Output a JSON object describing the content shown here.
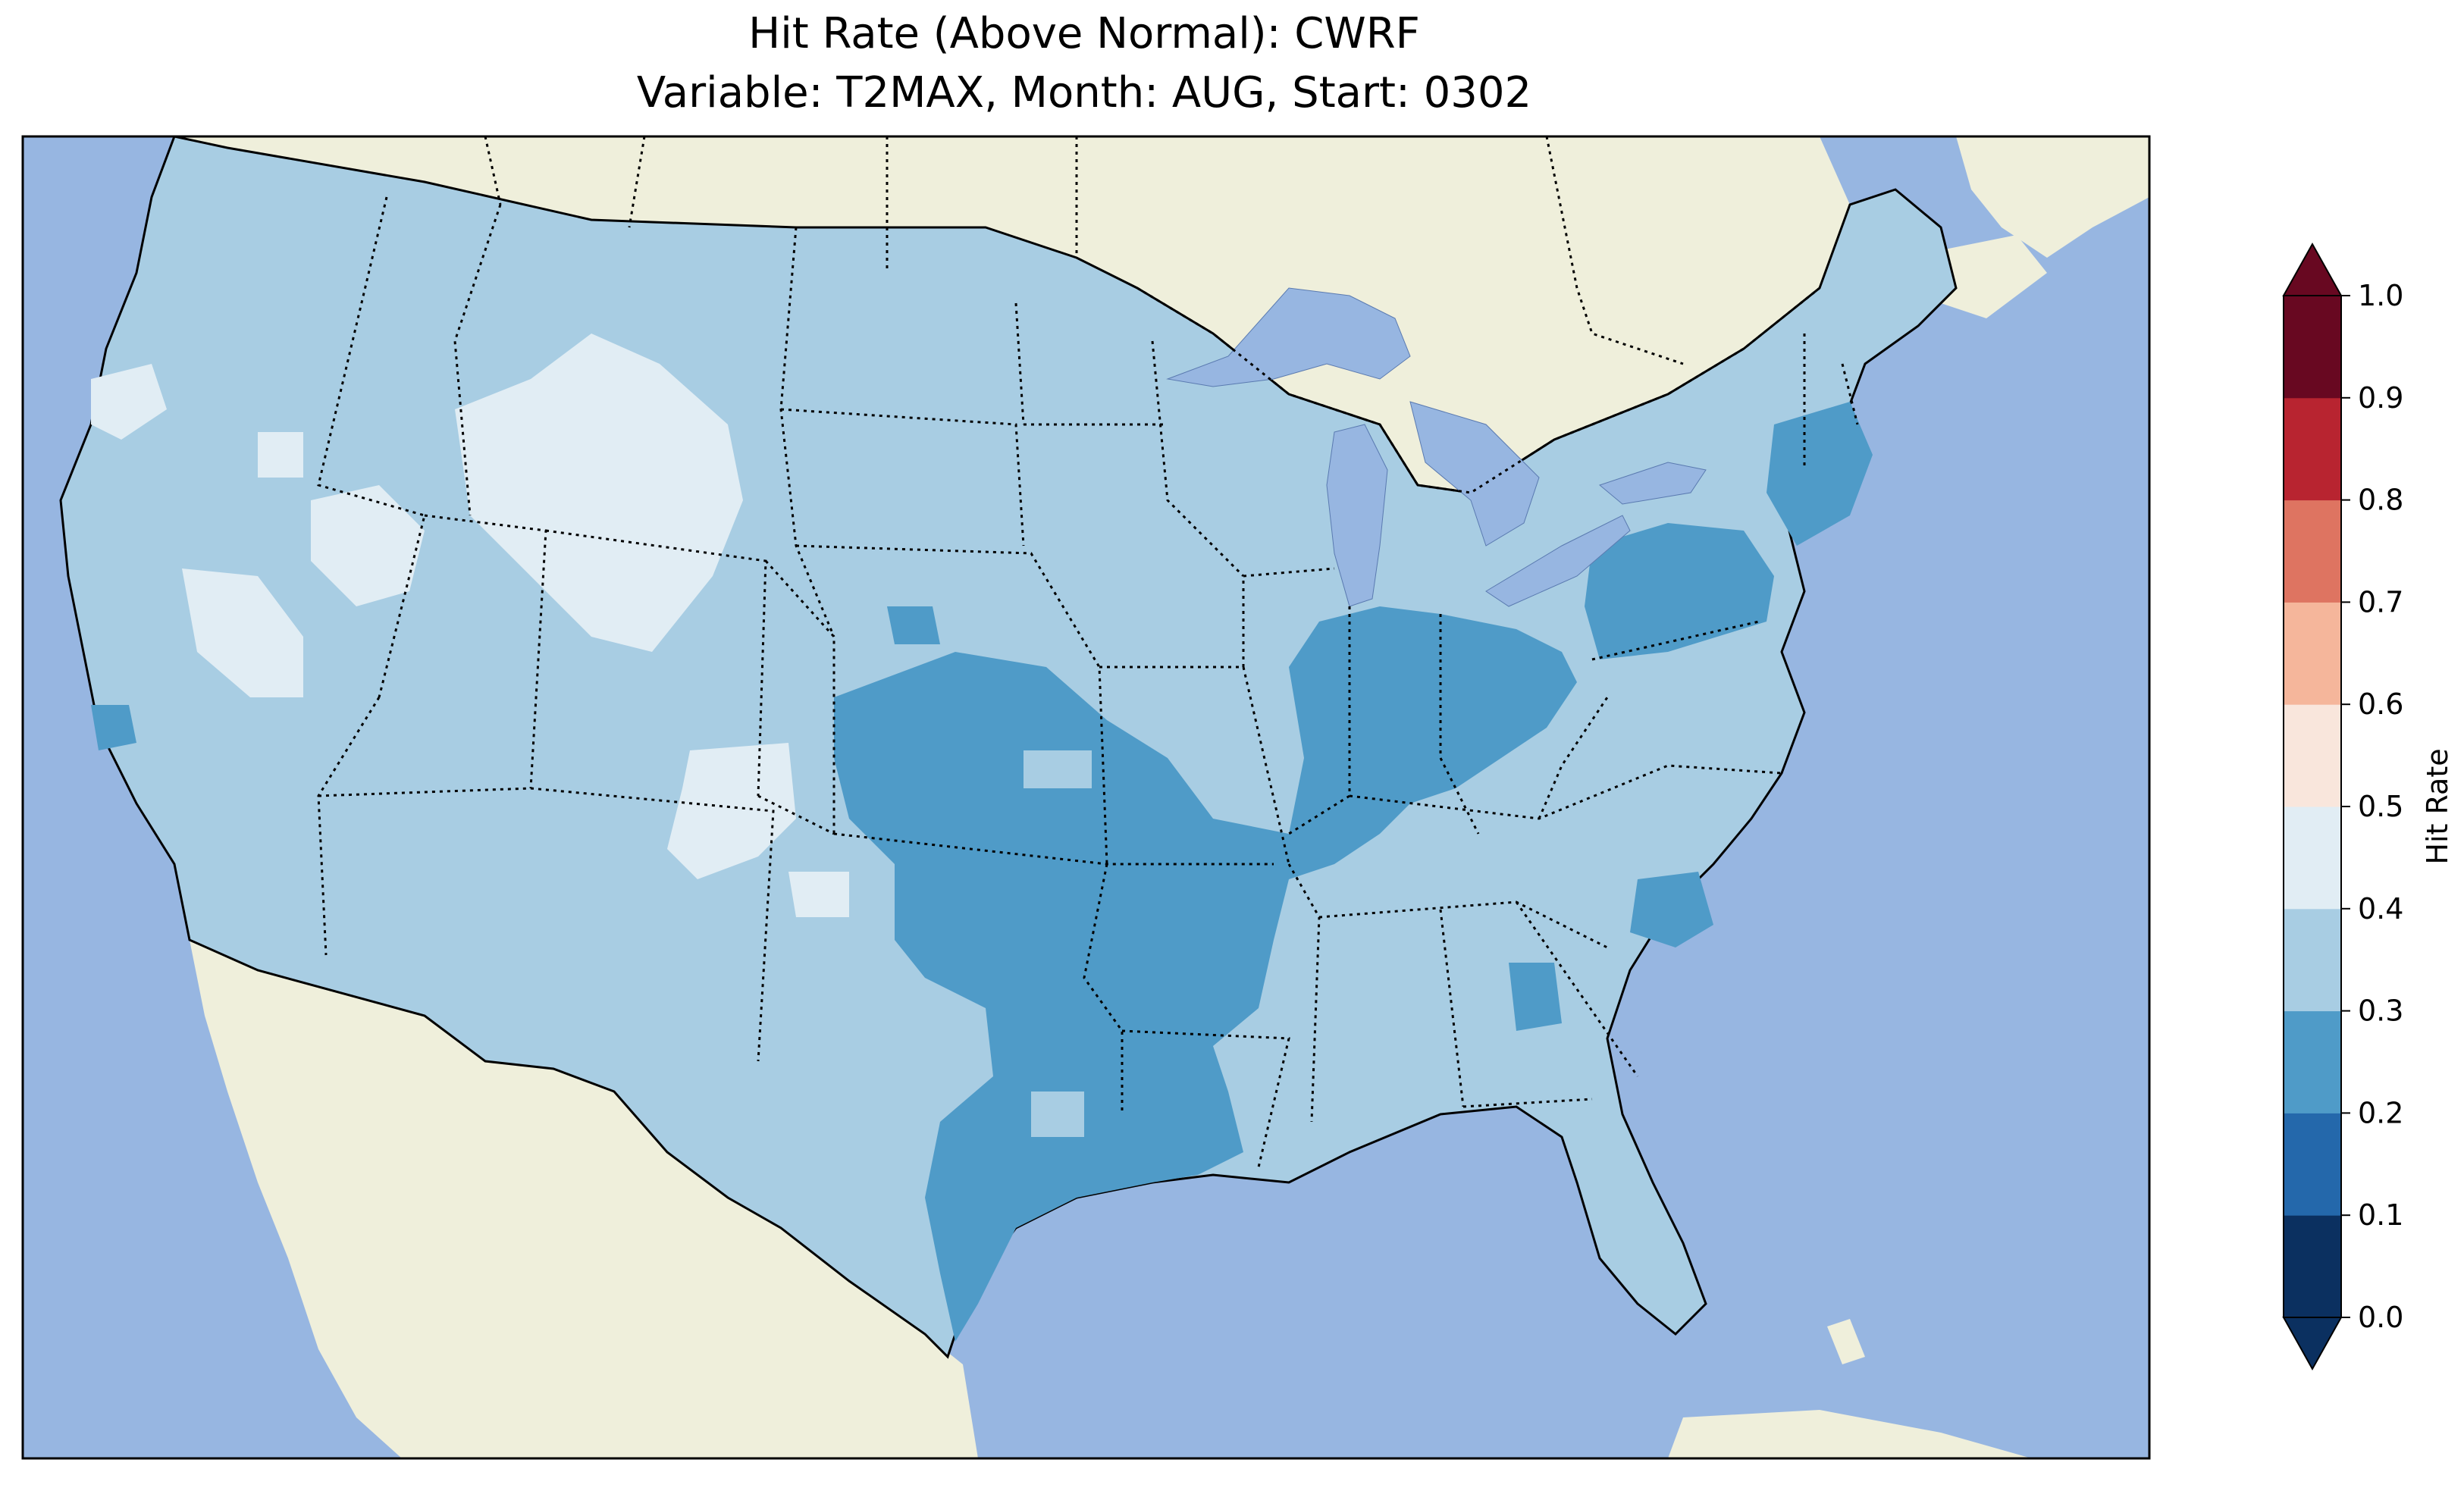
{
  "title": {
    "line1": "Hit Rate (Above Normal): CWRF",
    "line2": "Variable: T2MAX, Month: AUG, Start: 0302"
  },
  "map": {
    "colors": {
      "ocean": "#97b6e1",
      "land": "#efefdb",
      "lakes": "#97b6e1",
      "class_0.2_0.3": "#4f9bc8",
      "class_0.3_0.4": "#a8cde3",
      "class_0.4_0.5": "#e1edf4"
    }
  },
  "colorbar": {
    "label": "Hit Rate",
    "ticks": [
      "0.0",
      "0.1",
      "0.2",
      "0.3",
      "0.4",
      "0.5",
      "0.6",
      "0.7",
      "0.8",
      "0.9",
      "1.0"
    ],
    "colors": [
      "#0b3060",
      "#2468ab",
      "#4f9bc8",
      "#a8cde3",
      "#e1edf4",
      "#f9e6dc",
      "#f5b69b",
      "#de7461",
      "#b82430",
      "#680821"
    ],
    "extend": "both"
  }
}
